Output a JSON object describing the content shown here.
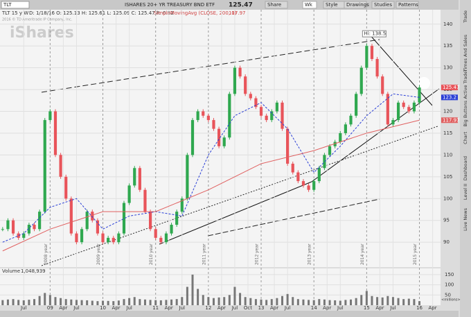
{
  "toolbar": {
    "symbol": "TLT",
    "description": "ISHARES 20+ YR TREASURY BND ETF",
    "last": "125.47",
    "buttons": [
      "Share",
      "Wk",
      "Style",
      "Drawings",
      "Studies",
      "Patterns"
    ]
  },
  "header": {
    "chart_id": "TLT 15 y W",
    "ohlc": "D: 1/18/16  O: 125.13  H: 125.61  L: 125.09  C: 125.47  R: 0.52",
    "study": "SimpleMovingAvg (CLOSE, 200, 0)"
  },
  "watermark": {
    "copyright": "2016 © TD Ameritrade IP Company, Inc.",
    "logo": "iShares"
  },
  "sidebar": [
    "Trade",
    "Times And Sales",
    "Active Trader",
    "Big Buttons",
    "Chart",
    "Dashboard",
    "Level II",
    "Live News"
  ],
  "chart_data": {
    "type": "candlestick",
    "x": [
      2008.1,
      2008.2,
      2008.3,
      2008.4,
      2008.5,
      2008.6,
      2008.7,
      2008.8,
      2008.9,
      2009.0,
      2009.1,
      2009.2,
      2009.3,
      2009.4,
      2009.5,
      2009.6,
      2009.7,
      2009.8,
      2009.9,
      2010.0,
      2010.1,
      2010.2,
      2010.3,
      2010.4,
      2010.5,
      2010.6,
      2010.7,
      2010.8,
      2010.9,
      2011.0,
      2011.1,
      2011.2,
      2011.3,
      2011.4,
      2011.5,
      2011.6,
      2011.7,
      2011.8,
      2011.9,
      2012.0,
      2012.1,
      2012.2,
      2012.3,
      2012.4,
      2012.5,
      2012.6,
      2012.7,
      2012.8,
      2012.9,
      2013.0,
      2013.1,
      2013.2,
      2013.3,
      2013.4,
      2013.5,
      2013.6,
      2013.7,
      2013.8,
      2013.9,
      2014.0,
      2014.1,
      2014.2,
      2014.3,
      2014.4,
      2014.5,
      2014.6,
      2014.7,
      2014.8,
      2014.9,
      2015.0,
      2015.1,
      2015.2,
      2015.3,
      2015.4,
      2015.5,
      2015.6,
      2015.7,
      2015.8,
      2015.9,
      2016.0
    ],
    "series": [
      {
        "name": "TLT",
        "color_up": "#2fa84f",
        "color_down": "#e8545a",
        "values": [
          93,
          95,
          92,
          91,
          92,
          94,
          93,
          97,
          118,
          120,
          110,
          105,
          100,
          92,
          90,
          93,
          97,
          95,
          92,
          90,
          91,
          90,
          92,
          99,
          103,
          107,
          102,
          97,
          93,
          91,
          90,
          92,
          94,
          97,
          100,
          110,
          118,
          120,
          119,
          118,
          116,
          112,
          114,
          124,
          130,
          128,
          124,
          123,
          121,
          119,
          118,
          120,
          122,
          116,
          108,
          106,
          104,
          103,
          102,
          104,
          107,
          110,
          112,
          113,
          115,
          117,
          119,
          124,
          130,
          135,
          132,
          128,
          124,
          117,
          118,
          122,
          121,
          120,
          122,
          125.47
        ]
      },
      {
        "color": "#2a3fd6",
        "x": [
          2008.1,
          2008.5,
          2009.0,
          2009.5,
          2010.0,
          2010.5,
          2011.0,
          2011.5,
          2012.0,
          2012.5,
          2013.0,
          2013.5,
          2014.0,
          2014.5,
          2015.0,
          2015.5,
          2016.0
        ],
        "values": [
          90,
          92,
          98,
          100,
          93,
          96,
          97,
          96,
          110,
          119,
          122,
          116,
          106,
          112,
          119,
          124,
          123.2
        ]
      },
      {
        "color": "#e06060",
        "x": [
          2008.1,
          2009.0,
          2010.0,
          2011.0,
          2012.0,
          2013.0,
          2014.0,
          2015.0,
          2016.0
        ],
        "values": [
          88,
          93,
          97,
          97,
          102,
          108,
          111,
          115,
          117.97
        ]
      }
    ],
    "volume": {
      "label": "Volume",
      "last": "1,048,939",
      "unit": "<millions>",
      "color": "#777",
      "values": [
        25,
        28,
        30,
        26,
        24,
        27,
        30,
        45,
        60,
        50,
        40,
        35,
        30,
        28,
        26,
        25,
        24,
        22,
        20,
        22,
        21,
        20,
        23,
        30,
        35,
        40,
        30,
        28,
        26,
        25,
        24,
        26,
        28,
        30,
        40,
        90,
        150,
        80,
        50,
        40,
        35,
        38,
        40,
        50,
        90,
        60,
        40,
        35,
        30,
        28,
        26,
        30,
        35,
        45,
        55,
        40,
        30,
        28,
        26,
        25,
        30,
        28,
        25,
        24,
        22,
        26,
        28,
        35,
        50,
        70,
        45,
        40,
        38,
        45,
        40,
        35,
        30,
        32,
        30,
        20
      ],
      "ylim": [
        0,
        170
      ],
      "yticks": [
        50,
        100,
        150
      ]
    },
    "annotations": [
      "Hi: 138.5"
    ],
    "xlim": [
      2008.05,
      2016.4
    ],
    "xticks": [
      {
        "value": 2008.5,
        "label": "Jul"
      },
      {
        "value": 2009,
        "label": "09"
      },
      {
        "value": 2009.25,
        "label": "Apr"
      },
      {
        "value": 2009.5,
        "label": "Jul"
      },
      {
        "value": 2010,
        "label": "10"
      },
      {
        "value": 2010.25,
        "label": "Apr"
      },
      {
        "value": 2010.5,
        "label": "Jul"
      },
      {
        "value": 2011,
        "label": "11"
      },
      {
        "value": 2011.25,
        "label": "Apr"
      },
      {
        "value": 2011.5,
        "label": "Jul"
      },
      {
        "value": 2012,
        "label": "12"
      },
      {
        "value": 2012.25,
        "label": "Apr"
      },
      {
        "value": 2012.5,
        "label": "Jul"
      },
      {
        "value": 2012.75,
        "label": "Oct"
      },
      {
        "value": 2013,
        "label": "13"
      },
      {
        "value": 2013.25,
        "label": "Apr"
      },
      {
        "value": 2013.5,
        "label": "Jul"
      },
      {
        "value": 2014,
        "label": "14"
      },
      {
        "value": 2014.25,
        "label": "Apr"
      },
      {
        "value": 2014.5,
        "label": "Jul"
      },
      {
        "value": 2015,
        "label": "15"
      },
      {
        "value": 2015.25,
        "label": "Apr"
      },
      {
        "value": 2015.5,
        "label": "Jul"
      },
      {
        "value": 2016,
        "label": "16"
      },
      {
        "value": 2016.25,
        "label": "Apr"
      }
    ],
    "period_labels": [
      {
        "value": 2009,
        "label": "2008 year"
      },
      {
        "value": 2010,
        "label": "2009 year"
      },
      {
        "value": 2011,
        "label": "2010 year"
      },
      {
        "value": 2012,
        "label": "2011 year"
      },
      {
        "value": 2013,
        "label": "2012 year"
      },
      {
        "value": 2014,
        "label": "2013 year"
      },
      {
        "value": 2015,
        "label": "2014 year"
      },
      {
        "value": 2016,
        "label": "2015 year"
      }
    ],
    "ylim": [
      84.3,
      143.3
    ],
    "yticks": [
      90,
      95,
      100,
      105,
      110,
      115,
      120,
      125,
      130,
      135,
      140
    ]
  }
}
